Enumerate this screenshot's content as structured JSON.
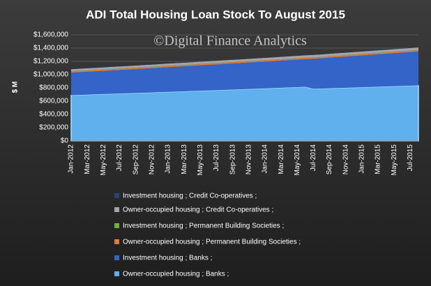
{
  "chart_data": {
    "type": "stacked_area",
    "title": "ADI Total Housing  Loan Stock To August  2015",
    "watermark": "©Digital Finance Analytics",
    "y_label": "$ M",
    "categories": [
      "Jan-2012",
      null,
      "Mar-2012",
      null,
      "May-2012",
      null,
      "Jul-2012",
      null,
      "Sep-2012",
      null,
      "Nov-2012",
      null,
      "Jan-2013",
      null,
      "Mar-2013",
      null,
      "May-2013",
      null,
      "Jul-2013",
      null,
      "Sep-2013",
      null,
      "Nov-2013",
      null,
      "Jan-2014",
      null,
      "Mar-2014",
      null,
      "May-2014",
      null,
      "Jul-2014",
      null,
      "Sep-2014",
      null,
      "Nov-2014",
      null,
      "Jan-2015",
      null,
      "Mar-2015",
      null,
      "May-2015",
      null,
      "Jul-2015",
      null
    ],
    "series": [
      {
        "name": "Owner-occupied housing ;  Banks ;",
        "color": "#5fb0ec",
        "values": [
          690000,
          694000,
          698000,
          702000,
          706000,
          710000,
          714000,
          718000,
          722000,
          726000,
          730000,
          735000,
          740000,
          744000,
          748000,
          752000,
          757000,
          761000,
          765000,
          770000,
          774000,
          778000,
          783000,
          787000,
          792000,
          796000,
          801000,
          806000,
          811000,
          816000,
          785000,
          789000,
          793000,
          797000,
          801000,
          805000,
          809000,
          813000,
          817000,
          821000,
          825000,
          829000,
          833000,
          837000
        ]
      },
      {
        "name": "Investment housing ;  Banks ;",
        "color": "#3464c8",
        "values": [
          340000,
          342700,
          345400,
          348100,
          350800,
          353500,
          356200,
          358900,
          361600,
          364300,
          367000,
          369700,
          372400,
          375100,
          377800,
          380500,
          383200,
          385900,
          388600,
          391300,
          394000,
          396700,
          399400,
          402100,
          404800,
          407500,
          410200,
          412900,
          415600,
          418300,
          454000,
          458500,
          463000,
          467500,
          472000,
          476500,
          481000,
          485500,
          490000,
          494500,
          499000,
          503500,
          508000,
          512500
        ]
      },
      {
        "name": "Owner-occupied housing ;  Permanent Building Societies ;",
        "color": "#e07b39",
        "values": [
          17000,
          17000,
          17000,
          17000,
          17000,
          17000,
          17000,
          17000,
          17000,
          17000,
          17000,
          17000,
          17000,
          17000,
          17000,
          17000,
          17000,
          17000,
          17000,
          17000,
          17000,
          17000,
          17000,
          17000,
          17000,
          17000,
          17000,
          17000,
          17000,
          17000,
          17000,
          17000,
          17000,
          17000,
          17000,
          17000,
          17000,
          17000,
          17000,
          17000,
          17000,
          17000,
          17000,
          17000
        ]
      },
      {
        "name": "Investment housing ;  Permanent Building Societies ;",
        "color": "#70ad47",
        "values": [
          3000,
          3000,
          3000,
          3000,
          3000,
          3000,
          3000,
          3000,
          3000,
          3000,
          3000,
          3000,
          3000,
          3000,
          3000,
          3000,
          3000,
          3000,
          3000,
          3000,
          3000,
          3000,
          3000,
          3000,
          3000,
          3000,
          3000,
          3000,
          3000,
          3000,
          3000,
          3000,
          3000,
          3000,
          3000,
          3000,
          3000,
          3000,
          3000,
          3000,
          3000,
          3000,
          3000,
          3000
        ]
      },
      {
        "name": "Owner-occupied housing ;  Credit Co-operatives ;",
        "color": "#a5a5a5",
        "values": [
          32000,
          32200,
          32400,
          32600,
          32800,
          33000,
          33200,
          33400,
          33600,
          33800,
          34000,
          34200,
          34400,
          34600,
          34800,
          35000,
          35200,
          35400,
          35600,
          35800,
          36000,
          36200,
          36400,
          36600,
          36800,
          37000,
          37200,
          37400,
          37600,
          37800,
          38000,
          38200,
          38400,
          38600,
          38800,
          39000,
          39200,
          39400,
          39600,
          39800,
          40000,
          40200,
          40400,
          40600
        ]
      },
      {
        "name": "Investment housing ;  Credit Co-operatives ;",
        "color": "#264478",
        "values": [
          4000,
          4000,
          4000,
          4000,
          4000,
          4000,
          4000,
          4000,
          4000,
          4000,
          4000,
          4000,
          4000,
          4000,
          4000,
          4000,
          4000,
          4000,
          4000,
          4000,
          4000,
          4000,
          4000,
          4000,
          4000,
          4000,
          4000,
          4000,
          4000,
          4000,
          4000,
          4000,
          4000,
          4000,
          4000,
          4000,
          4000,
          4000,
          4000,
          4000,
          4000,
          4000,
          4000,
          4000
        ]
      }
    ],
    "ylim": [
      0,
      1600000
    ],
    "yticks": [
      {
        "value": 0,
        "label": "$0"
      },
      {
        "value": 200000,
        "label": "$200,000"
      },
      {
        "value": 400000,
        "label": "$400,000"
      },
      {
        "value": 600000,
        "label": "$600,000"
      },
      {
        "value": 800000,
        "label": "$800,000"
      },
      {
        "value": 1000000,
        "label": "$1,000,000"
      },
      {
        "value": 1200000,
        "label": "$1,200,000"
      },
      {
        "value": 1400000,
        "label": "$1,400,000"
      },
      {
        "value": 1600000,
        "label": "$1,600,000"
      }
    ],
    "grid": true
  }
}
